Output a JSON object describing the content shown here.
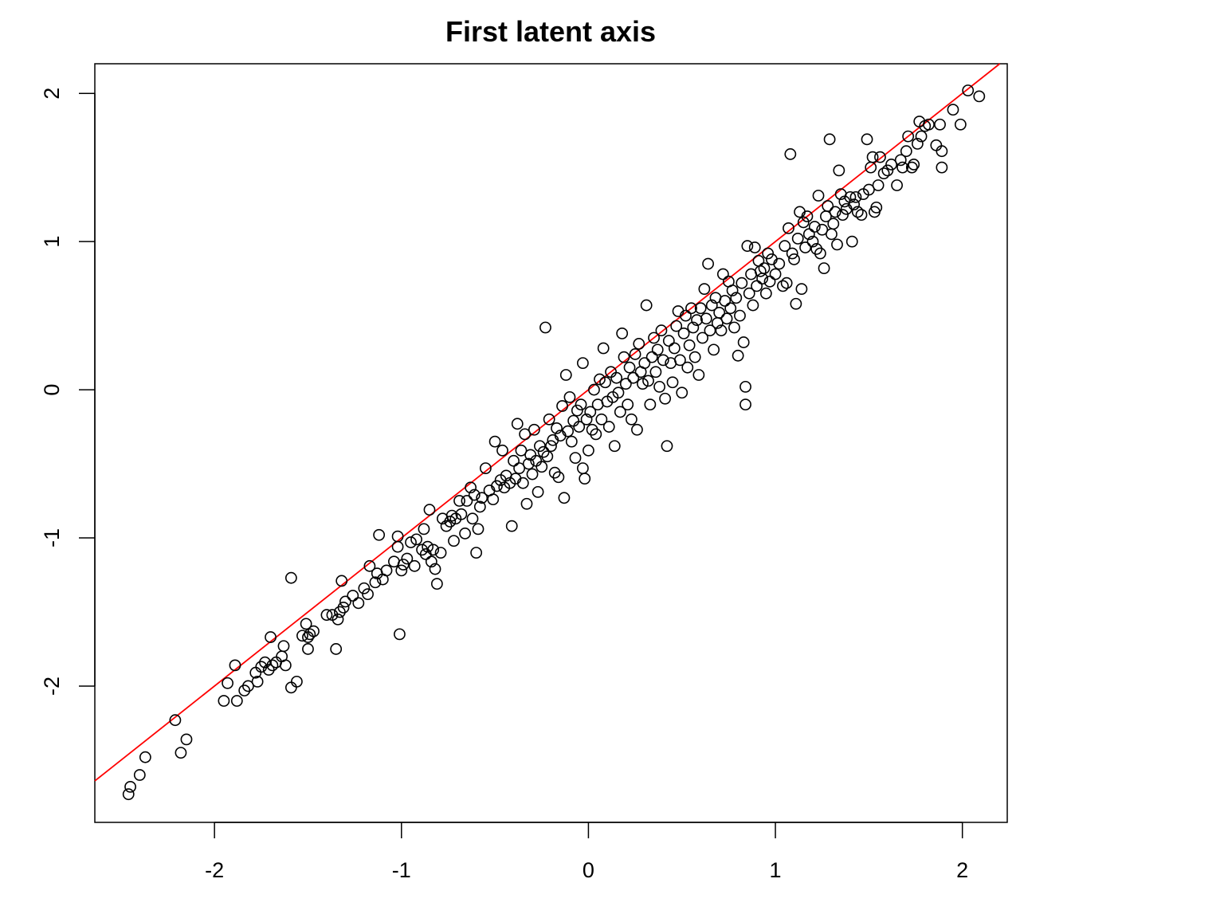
{
  "chart_data": {
    "type": "scatter",
    "title": "First latent axis",
    "xlabel": "",
    "ylabel": "",
    "xlim": [
      -2.64,
      2.24
    ],
    "ylim": [
      -2.92,
      2.2
    ],
    "x_ticks": [
      -2,
      -1,
      0,
      1,
      2
    ],
    "x_tick_labels": [
      "-2",
      "-1",
      "0",
      "1",
      "2"
    ],
    "y_ticks": [
      -2,
      -1,
      0,
      1,
      2
    ],
    "y_tick_labels": [
      "-2",
      "-1",
      "0",
      "1",
      "2"
    ],
    "grid": false,
    "reference_line": {
      "intercept": 0.0,
      "slope": 1.0,
      "color": "#ff0000"
    },
    "point_color": "#000000",
    "series": [
      {
        "points": [
          [
            -2.46,
            -2.73
          ],
          [
            -2.45,
            -2.68
          ],
          [
            -2.4,
            -2.6
          ],
          [
            -2.37,
            -2.48
          ],
          [
            -2.21,
            -2.23
          ],
          [
            -2.18,
            -2.45
          ],
          [
            -2.15,
            -2.36
          ],
          [
            -1.95,
            -2.1
          ],
          [
            -1.93,
            -1.98
          ],
          [
            -1.89,
            -1.86
          ],
          [
            -1.88,
            -2.1
          ],
          [
            -1.84,
            -2.03
          ],
          [
            -1.82,
            -2.0
          ],
          [
            -1.78,
            -1.91
          ],
          [
            -1.77,
            -1.97
          ],
          [
            -1.75,
            -1.87
          ],
          [
            -1.73,
            -1.84
          ],
          [
            -1.71,
            -1.89
          ],
          [
            -1.7,
            -1.67
          ],
          [
            -1.69,
            -1.86
          ],
          [
            -1.67,
            -1.84
          ],
          [
            -1.64,
            -1.8
          ],
          [
            -1.63,
            -1.73
          ],
          [
            -1.62,
            -1.86
          ],
          [
            -1.59,
            -1.27
          ],
          [
            -1.59,
            -2.01
          ],
          [
            -1.56,
            -1.97
          ],
          [
            -1.53,
            -1.66
          ],
          [
            -1.51,
            -1.58
          ],
          [
            -1.5,
            -1.75
          ],
          [
            -1.5,
            -1.67
          ],
          [
            -1.49,
            -1.65
          ],
          [
            -1.47,
            -1.63
          ],
          [
            -1.4,
            -1.52
          ],
          [
            -1.37,
            -1.52
          ],
          [
            -1.35,
            -1.75
          ],
          [
            -1.34,
            -1.55
          ],
          [
            -1.33,
            -1.5
          ],
          [
            -1.32,
            -1.29
          ],
          [
            -1.31,
            -1.47
          ],
          [
            -1.3,
            -1.43
          ],
          [
            -1.26,
            -1.39
          ],
          [
            -1.23,
            -1.44
          ],
          [
            -1.2,
            -1.34
          ],
          [
            -1.18,
            -1.38
          ],
          [
            -1.17,
            -1.19
          ],
          [
            -1.14,
            -1.3
          ],
          [
            -1.13,
            -1.24
          ],
          [
            -1.12,
            -0.98
          ],
          [
            -1.1,
            -1.28
          ],
          [
            -1.08,
            -1.22
          ],
          [
            -1.04,
            -1.16
          ],
          [
            -1.02,
            -0.99
          ],
          [
            -1.02,
            -1.06
          ],
          [
            -1.01,
            -1.65
          ],
          [
            -1.0,
            -1.22
          ],
          [
            -0.99,
            -1.18
          ],
          [
            -0.97,
            -1.14
          ],
          [
            -0.95,
            -1.03
          ],
          [
            -0.93,
            -1.19
          ],
          [
            -0.92,
            -1.01
          ],
          [
            -0.89,
            -1.08
          ],
          [
            -0.88,
            -0.94
          ],
          [
            -0.87,
            -1.11
          ],
          [
            -0.86,
            -1.06
          ],
          [
            -0.85,
            -0.81
          ],
          [
            -0.84,
            -1.16
          ],
          [
            -0.83,
            -1.08
          ],
          [
            -0.82,
            -1.21
          ],
          [
            -0.81,
            -1.31
          ],
          [
            -0.79,
            -1.1
          ],
          [
            -0.78,
            -0.87
          ],
          [
            -0.76,
            -0.92
          ],
          [
            -0.74,
            -0.89
          ],
          [
            -0.73,
            -0.85
          ],
          [
            -0.72,
            -1.02
          ],
          [
            -0.71,
            -0.87
          ],
          [
            -0.69,
            -0.75
          ],
          [
            -0.68,
            -0.84
          ],
          [
            -0.66,
            -0.97
          ],
          [
            -0.65,
            -0.75
          ],
          [
            -0.63,
            -0.66
          ],
          [
            -0.62,
            -0.87
          ],
          [
            -0.61,
            -0.71
          ],
          [
            -0.6,
            -1.1
          ],
          [
            -0.59,
            -0.94
          ],
          [
            -0.58,
            -0.79
          ],
          [
            -0.57,
            -0.73
          ],
          [
            -0.55,
            -0.53
          ],
          [
            -0.53,
            -0.68
          ],
          [
            -0.51,
            -0.74
          ],
          [
            -0.5,
            -0.35
          ],
          [
            -0.49,
            -0.65
          ],
          [
            -0.47,
            -0.61
          ],
          [
            -0.46,
            -0.41
          ],
          [
            -0.45,
            -0.66
          ],
          [
            -0.44,
            -0.58
          ],
          [
            -0.42,
            -0.63
          ],
          [
            -0.41,
            -0.92
          ],
          [
            -0.4,
            -0.48
          ],
          [
            -0.39,
            -0.6
          ],
          [
            -0.38,
            -0.23
          ],
          [
            -0.37,
            -0.53
          ],
          [
            -0.36,
            -0.41
          ],
          [
            -0.35,
            -0.63
          ],
          [
            -0.34,
            -0.3
          ],
          [
            -0.33,
            -0.77
          ],
          [
            -0.32,
            -0.5
          ],
          [
            -0.31,
            -0.44
          ],
          [
            -0.3,
            -0.57
          ],
          [
            -0.29,
            -0.27
          ],
          [
            -0.28,
            -0.48
          ],
          [
            -0.27,
            -0.69
          ],
          [
            -0.26,
            -0.38
          ],
          [
            -0.25,
            -0.52
          ],
          [
            -0.24,
            -0.42
          ],
          [
            -0.23,
            0.42
          ],
          [
            -0.22,
            -0.45
          ],
          [
            -0.21,
            -0.2
          ],
          [
            -0.2,
            -0.38
          ],
          [
            -0.19,
            -0.34
          ],
          [
            -0.18,
            -0.56
          ],
          [
            -0.17,
            -0.26
          ],
          [
            -0.16,
            -0.59
          ],
          [
            -0.15,
            -0.31
          ],
          [
            -0.14,
            -0.11
          ],
          [
            -0.13,
            -0.73
          ],
          [
            -0.12,
            0.1
          ],
          [
            -0.11,
            -0.28
          ],
          [
            -0.1,
            -0.05
          ],
          [
            -0.09,
            -0.35
          ],
          [
            -0.08,
            -0.21
          ],
          [
            -0.07,
            -0.46
          ],
          [
            -0.06,
            -0.14
          ],
          [
            -0.05,
            -0.25
          ],
          [
            -0.04,
            -0.1
          ],
          [
            -0.03,
            -0.53
          ],
          [
            -0.03,
            0.18
          ],
          [
            -0.02,
            -0.6
          ],
          [
            -0.01,
            -0.2
          ],
          [
            0.0,
            -0.41
          ],
          [
            0.01,
            -0.15
          ],
          [
            0.02,
            -0.27
          ],
          [
            0.03,
            0.0
          ],
          [
            0.04,
            -0.3
          ],
          [
            0.05,
            -0.1
          ],
          [
            0.06,
            0.07
          ],
          [
            0.07,
            -0.2
          ],
          [
            0.08,
            0.28
          ],
          [
            0.09,
            0.05
          ],
          [
            0.1,
            -0.08
          ],
          [
            0.11,
            -0.25
          ],
          [
            0.12,
            0.12
          ],
          [
            0.13,
            -0.05
          ],
          [
            0.14,
            -0.38
          ],
          [
            0.15,
            0.08
          ],
          [
            0.16,
            -0.02
          ],
          [
            0.17,
            -0.15
          ],
          [
            0.18,
            0.38
          ],
          [
            0.19,
            0.22
          ],
          [
            0.2,
            0.04
          ],
          [
            0.21,
            -0.1
          ],
          [
            0.22,
            0.15
          ],
          [
            0.23,
            -0.2
          ],
          [
            0.24,
            0.08
          ],
          [
            0.25,
            0.24
          ],
          [
            0.26,
            -0.27
          ],
          [
            0.27,
            0.31
          ],
          [
            0.28,
            0.12
          ],
          [
            0.29,
            0.04
          ],
          [
            0.3,
            0.18
          ],
          [
            0.31,
            0.57
          ],
          [
            0.32,
            0.06
          ],
          [
            0.33,
            -0.1
          ],
          [
            0.34,
            0.22
          ],
          [
            0.35,
            0.35
          ],
          [
            0.36,
            0.12
          ],
          [
            0.37,
            0.27
          ],
          [
            0.38,
            0.02
          ],
          [
            0.39,
            0.4
          ],
          [
            0.4,
            0.2
          ],
          [
            0.41,
            -0.06
          ],
          [
            0.42,
            -0.38
          ],
          [
            0.43,
            0.33
          ],
          [
            0.44,
            0.18
          ],
          [
            0.45,
            0.05
          ],
          [
            0.46,
            0.28
          ],
          [
            0.47,
            0.43
          ],
          [
            0.48,
            0.53
          ],
          [
            0.49,
            0.2
          ],
          [
            0.5,
            -0.02
          ],
          [
            0.51,
            0.38
          ],
          [
            0.52,
            0.5
          ],
          [
            0.53,
            0.15
          ],
          [
            0.54,
            0.3
          ],
          [
            0.55,
            0.55
          ],
          [
            0.56,
            0.42
          ],
          [
            0.57,
            0.22
          ],
          [
            0.58,
            0.47
          ],
          [
            0.59,
            0.1
          ],
          [
            0.6,
            0.55
          ],
          [
            0.61,
            0.35
          ],
          [
            0.62,
            0.68
          ],
          [
            0.63,
            0.48
          ],
          [
            0.64,
            0.85
          ],
          [
            0.65,
            0.4
          ],
          [
            0.66,
            0.57
          ],
          [
            0.67,
            0.27
          ],
          [
            0.68,
            0.62
          ],
          [
            0.69,
            0.45
          ],
          [
            0.7,
            0.52
          ],
          [
            0.71,
            0.4
          ],
          [
            0.72,
            0.78
          ],
          [
            0.73,
            0.6
          ],
          [
            0.74,
            0.48
          ],
          [
            0.75,
            0.73
          ],
          [
            0.76,
            0.55
          ],
          [
            0.77,
            0.67
          ],
          [
            0.78,
            0.42
          ],
          [
            0.79,
            0.62
          ],
          [
            0.8,
            0.23
          ],
          [
            0.81,
            0.5
          ],
          [
            0.82,
            0.72
          ],
          [
            0.83,
            0.32
          ],
          [
            0.84,
            0.02
          ],
          [
            0.84,
            -0.1
          ],
          [
            0.85,
            0.97
          ],
          [
            0.86,
            0.65
          ],
          [
            0.87,
            0.78
          ],
          [
            0.88,
            0.57
          ],
          [
            0.89,
            0.96
          ],
          [
            0.9,
            0.7
          ],
          [
            0.91,
            0.87
          ],
          [
            0.92,
            0.8
          ],
          [
            0.93,
            0.75
          ],
          [
            0.94,
            0.82
          ],
          [
            0.95,
            0.65
          ],
          [
            0.96,
            0.92
          ],
          [
            0.97,
            0.73
          ],
          [
            0.98,
            0.88
          ],
          [
            1.0,
            0.78
          ],
          [
            1.02,
            0.85
          ],
          [
            1.04,
            0.7
          ],
          [
            1.05,
            0.97
          ],
          [
            1.06,
            0.72
          ],
          [
            1.07,
            1.09
          ],
          [
            1.08,
            1.59
          ],
          [
            1.09,
            0.92
          ],
          [
            1.1,
            0.88
          ],
          [
            1.11,
            0.58
          ],
          [
            1.12,
            1.02
          ],
          [
            1.13,
            1.2
          ],
          [
            1.14,
            0.68
          ],
          [
            1.15,
            1.13
          ],
          [
            1.16,
            0.96
          ],
          [
            1.17,
            1.17
          ],
          [
            1.18,
            1.05
          ],
          [
            1.2,
            1.0
          ],
          [
            1.21,
            1.1
          ],
          [
            1.22,
            0.95
          ],
          [
            1.23,
            1.31
          ],
          [
            1.24,
            0.92
          ],
          [
            1.25,
            1.08
          ],
          [
            1.26,
            0.82
          ],
          [
            1.27,
            1.17
          ],
          [
            1.28,
            1.24
          ],
          [
            1.29,
            1.69
          ],
          [
            1.3,
            1.05
          ],
          [
            1.31,
            1.12
          ],
          [
            1.32,
            1.2
          ],
          [
            1.33,
            0.98
          ],
          [
            1.34,
            1.48
          ],
          [
            1.35,
            1.32
          ],
          [
            1.36,
            1.18
          ],
          [
            1.37,
            1.27
          ],
          [
            1.38,
            1.22
          ],
          [
            1.4,
            1.3
          ],
          [
            1.41,
            1.0
          ],
          [
            1.42,
            1.25
          ],
          [
            1.43,
            1.3
          ],
          [
            1.44,
            1.2
          ],
          [
            1.46,
            1.18
          ],
          [
            1.47,
            1.32
          ],
          [
            1.49,
            1.69
          ],
          [
            1.5,
            1.35
          ],
          [
            1.51,
            1.5
          ],
          [
            1.52,
            1.57
          ],
          [
            1.53,
            1.2
          ],
          [
            1.54,
            1.23
          ],
          [
            1.55,
            1.38
          ],
          [
            1.56,
            1.57
          ],
          [
            1.58,
            1.46
          ],
          [
            1.6,
            1.48
          ],
          [
            1.62,
            1.52
          ],
          [
            1.65,
            1.38
          ],
          [
            1.67,
            1.55
          ],
          [
            1.68,
            1.5
          ],
          [
            1.7,
            1.61
          ],
          [
            1.71,
            1.71
          ],
          [
            1.73,
            1.5
          ],
          [
            1.74,
            1.52
          ],
          [
            1.76,
            1.66
          ],
          [
            1.77,
            1.81
          ],
          [
            1.78,
            1.71
          ],
          [
            1.8,
            1.78
          ],
          [
            1.82,
            1.79
          ],
          [
            1.86,
            1.65
          ],
          [
            1.88,
            1.79
          ],
          [
            1.89,
            1.61
          ],
          [
            1.89,
            1.5
          ],
          [
            1.95,
            1.89
          ],
          [
            1.99,
            1.79
          ],
          [
            2.03,
            2.02
          ],
          [
            2.09,
            1.98
          ]
        ]
      }
    ]
  }
}
